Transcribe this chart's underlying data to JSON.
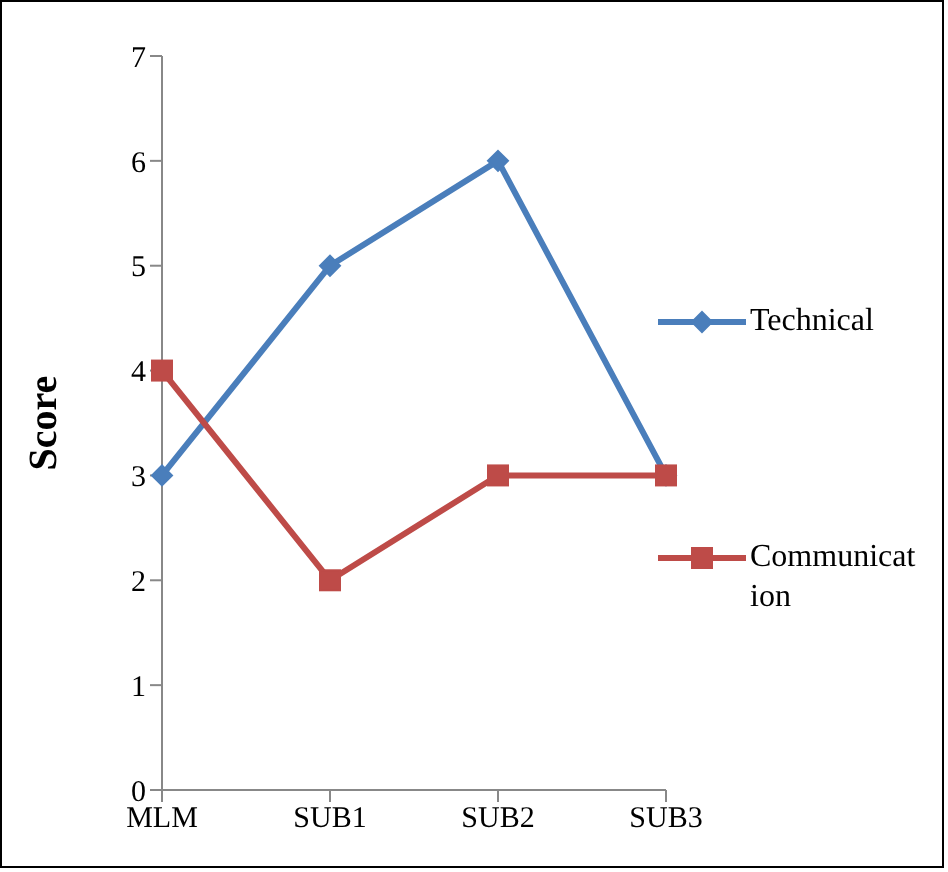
{
  "chart_data": {
    "type": "line",
    "ylabel": "Score",
    "categories": [
      "MLM",
      "SUB1",
      "SUB2",
      "SUB3"
    ],
    "series": [
      {
        "name": "Technical",
        "color": "#4a7ebb",
        "values": [
          3,
          5,
          6,
          3
        ],
        "marker": "diamond"
      },
      {
        "name": "Communication",
        "color": "#be4b48",
        "values": [
          4,
          2,
          3,
          3
        ],
        "marker": "square"
      }
    ],
    "ylim": [
      0,
      7
    ],
    "yticks": [
      0,
      1,
      2,
      3,
      4,
      5,
      6,
      7
    ],
    "legend": "right"
  }
}
